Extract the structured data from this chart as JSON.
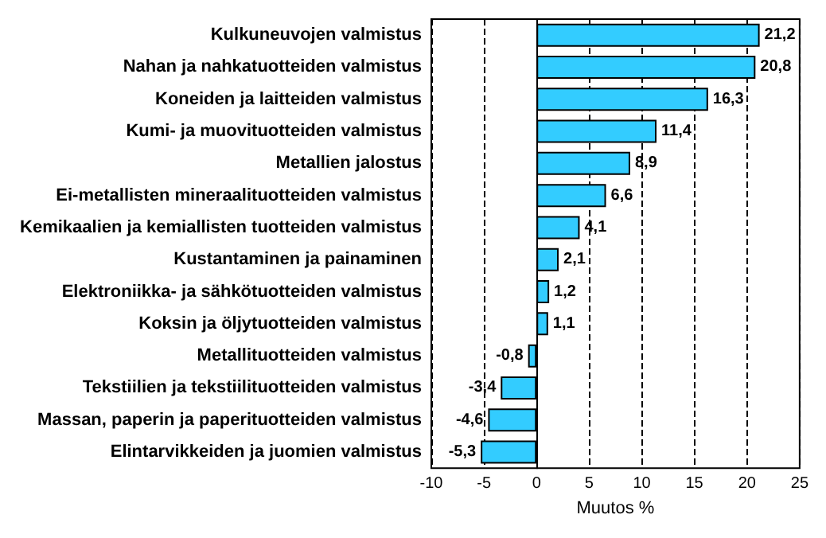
{
  "chart_data": {
    "type": "bar",
    "orientation": "horizontal",
    "xlabel": "Muutos %",
    "categories": [
      "Kulkuneuvojen valmistus",
      "Nahan ja nahkatuotteiden valmistus",
      "Koneiden ja laitteiden valmistus",
      "Kumi- ja muovituotteiden valmistus",
      "Metallien jalostus",
      "Ei-metallisten mineraalituotteiden valmistus",
      "Kemikaalien ja kemiallisten tuotteiden valmistus",
      "Kustantaminen ja painaminen",
      "Elektroniikka- ja sähkötuotteiden valmistus",
      "Koksin ja öljytuotteiden valmistus",
      "Metallituotteiden valmistus",
      "Tekstiilien ja tekstiilituotteiden valmistus",
      "Massan, paperin ja paperituotteiden valmistus",
      "Elintarvikkeiden ja juomien valmistus"
    ],
    "values": [
      21.2,
      20.8,
      16.3,
      11.4,
      8.9,
      6.6,
      4.1,
      2.1,
      1.2,
      1.1,
      -0.8,
      -3.4,
      -4.6,
      -5.3
    ],
    "value_labels": [
      "21,2",
      "20,8",
      "16,3",
      "11,4",
      "8,9",
      "6,6",
      "4,1",
      "2,1",
      "1,2",
      "1,1",
      "-0,8",
      "-3,4",
      "-4,6",
      "-5,3"
    ],
    "color": "#33ccff",
    "xlim": [
      -10,
      25
    ],
    "xticks": [
      -10,
      -5,
      0,
      5,
      10,
      15,
      20,
      25
    ],
    "grid": "x"
  }
}
